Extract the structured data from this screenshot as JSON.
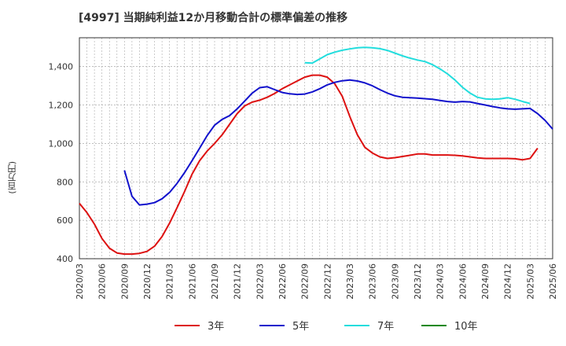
{
  "chart_data": {
    "type": "line",
    "title": "[4997]  当期純利益12か月移動合計の標準偏差の推移",
    "ylabel": "(百万円)",
    "xlabel": "",
    "ylim": [
      400,
      1550
    ],
    "yticks": [
      400,
      600,
      800,
      1000,
      1200,
      1400
    ],
    "ytick_labels": [
      "400",
      "600",
      "800",
      "1,000",
      "1,200",
      "1,400"
    ],
    "x_tick_labels": [
      "2020/03",
      "2020/06",
      "2020/09",
      "2020/12",
      "2021/03",
      "2021/06",
      "2021/09",
      "2021/12",
      "2022/03",
      "2022/06",
      "2022/09",
      "2022/12",
      "2023/03",
      "2023/06",
      "2023/09",
      "2023/12",
      "2024/03",
      "2024/06",
      "2024/09",
      "2024/12",
      "2025/03",
      "2025/06"
    ],
    "grid": true,
    "legend_position": "bottom",
    "series": [
      {
        "name": "3年",
        "color": "#dd1111",
        "start_index": 0,
        "values": [
          688,
          640,
          580,
          505,
          455,
          430,
          424,
          424,
          428,
          438,
          465,
          515,
          585,
          665,
          750,
          840,
          910,
          960,
          1000,
          1045,
          1100,
          1155,
          1195,
          1215,
          1225,
          1240,
          1260,
          1285,
          1305,
          1325,
          1345,
          1355,
          1355,
          1345,
          1310,
          1245,
          1140,
          1045,
          980,
          950,
          930,
          922,
          926,
          932,
          938,
          945,
          945,
          940,
          940,
          940,
          938,
          935,
          930,
          925,
          922,
          922,
          922,
          922,
          920,
          915,
          922,
          975
        ]
      },
      {
        "name": "5年",
        "color": "#1111cc",
        "start_index": 6,
        "values": [
          860,
          725,
          680,
          684,
          692,
          712,
          745,
          792,
          848,
          910,
          975,
          1040,
          1095,
          1125,
          1145,
          1180,
          1220,
          1262,
          1290,
          1295,
          1280,
          1265,
          1258,
          1255,
          1257,
          1268,
          1285,
          1305,
          1318,
          1326,
          1330,
          1325,
          1315,
          1300,
          1280,
          1262,
          1248,
          1240,
          1238,
          1236,
          1233,
          1230,
          1224,
          1218,
          1215,
          1218,
          1216,
          1208,
          1200,
          1192,
          1185,
          1180,
          1178,
          1180,
          1182,
          1155,
          1120,
          1075
        ]
      },
      {
        "name": "7年",
        "color": "#22dddd",
        "start_index": 30,
        "values": [
          1420,
          1418,
          1440,
          1462,
          1475,
          1485,
          1492,
          1498,
          1500,
          1498,
          1493,
          1484,
          1470,
          1456,
          1444,
          1434,
          1426,
          1410,
          1388,
          1362,
          1330,
          1292,
          1262,
          1240,
          1232,
          1230,
          1232,
          1238,
          1230,
          1218,
          1208
        ]
      },
      {
        "name": "10年",
        "color": "#118811",
        "start_index": 0,
        "values": []
      }
    ]
  }
}
